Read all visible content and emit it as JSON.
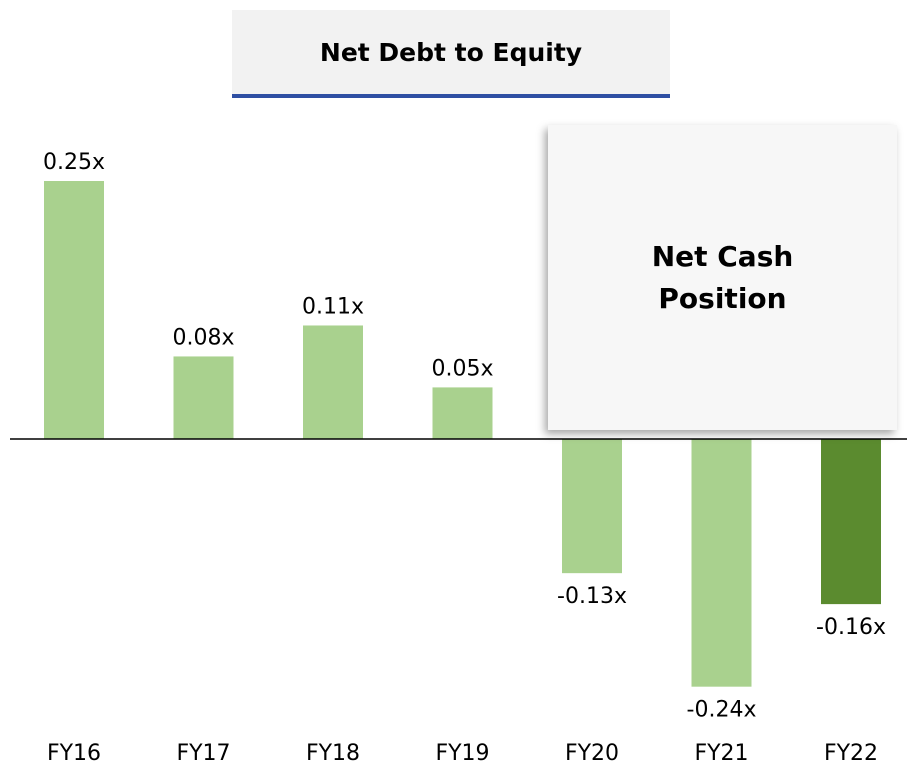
{
  "chart_data": {
    "type": "bar",
    "title": "Net Debt to Equity",
    "annotation": "Net Cash Position",
    "categories": [
      "FY16",
      "FY17",
      "FY18",
      "FY19",
      "FY20",
      "FY21",
      "FY22"
    ],
    "values": [
      0.25,
      0.08,
      0.11,
      0.05,
      -0.13,
      -0.24,
      -0.16
    ],
    "value_labels": [
      "0.25x",
      "0.08x",
      "0.11x",
      "0.05x",
      "-0.13x",
      "-0.24x",
      "-0.16x"
    ],
    "colors": [
      "#a9d18e",
      "#a9d18e",
      "#a9d18e",
      "#a9d18e",
      "#a9d18e",
      "#a9d18e",
      "#5b8b2f"
    ],
    "ylim": [
      -0.3,
      0.3
    ]
  }
}
